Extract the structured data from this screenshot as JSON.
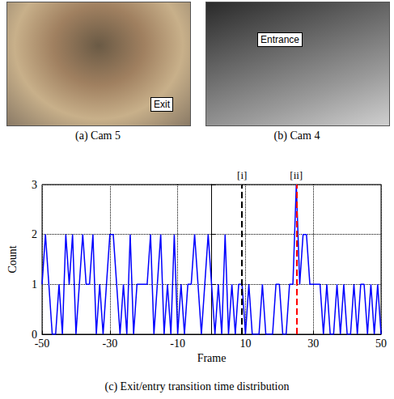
{
  "panels": [
    {
      "caption": "(a) Cam 5",
      "annotation": "Exit"
    },
    {
      "caption": "(b) Cam 4",
      "annotation": "Entrance"
    }
  ],
  "chart_data": {
    "type": "line",
    "title": "(c) Exit/entry transition time distribution",
    "x_label": "Frame",
    "y_label": "Count",
    "x": [
      -50,
      -49,
      -48,
      -47,
      -46,
      -45,
      -44,
      -43,
      -42,
      -41,
      -40,
      -39,
      -38,
      -37,
      -36,
      -35,
      -34,
      -33,
      -32,
      -31,
      -30,
      -29,
      -28,
      -27,
      -26,
      -25,
      -24,
      -23,
      -22,
      -21,
      -20,
      -19,
      -18,
      -17,
      -16,
      -15,
      -14,
      -13,
      -12,
      -11,
      -10,
      -9,
      -8,
      -7,
      -6,
      -5,
      -4,
      -3,
      -2,
      -1,
      0,
      1,
      2,
      3,
      4,
      5,
      6,
      7,
      8,
      9,
      10,
      11,
      12,
      13,
      14,
      15,
      16,
      17,
      18,
      19,
      20,
      21,
      22,
      23,
      24,
      25,
      26,
      27,
      28,
      29,
      30,
      31,
      32,
      33,
      34,
      35,
      36,
      37,
      38,
      39,
      40,
      41,
      42,
      43,
      44,
      45,
      46,
      47,
      48,
      49,
      50
    ],
    "values": [
      1,
      2,
      1,
      0,
      0,
      1,
      0,
      2,
      1,
      2,
      0,
      1,
      2,
      1,
      1,
      2,
      0,
      1,
      0,
      1,
      2,
      2,
      1,
      0,
      1,
      0,
      2,
      0,
      1,
      1,
      1,
      1,
      2,
      0,
      1,
      2,
      0,
      1,
      0,
      2,
      0,
      1,
      0,
      1,
      1,
      2,
      1,
      0,
      1,
      2,
      1,
      0,
      1,
      0,
      2,
      0,
      1,
      0,
      1,
      1,
      0,
      1,
      0,
      0,
      0,
      1,
      0,
      0,
      0,
      1,
      1,
      0,
      0,
      1,
      1,
      3,
      1,
      2,
      2,
      1,
      1,
      1,
      1,
      0,
      1,
      0,
      0,
      1,
      0,
      1,
      0,
      0,
      1,
      0,
      1,
      1,
      0,
      1,
      0,
      1,
      0
    ],
    "color": "#0000ff",
    "xlim": [
      -50,
      50
    ],
    "xticks": [
      -50,
      -30,
      -10,
      10,
      30,
      50
    ],
    "ylim": [
      0,
      3
    ],
    "yticks": [
      0,
      1,
      2,
      3
    ],
    "grid": true,
    "annotations": [
      {
        "x": 9,
        "text": "[i]",
        "color": "#000000",
        "line_style": "dashed"
      },
      {
        "x": 25,
        "text": "[ii]",
        "color": "#ff0000",
        "line_style": "dashed"
      }
    ]
  }
}
